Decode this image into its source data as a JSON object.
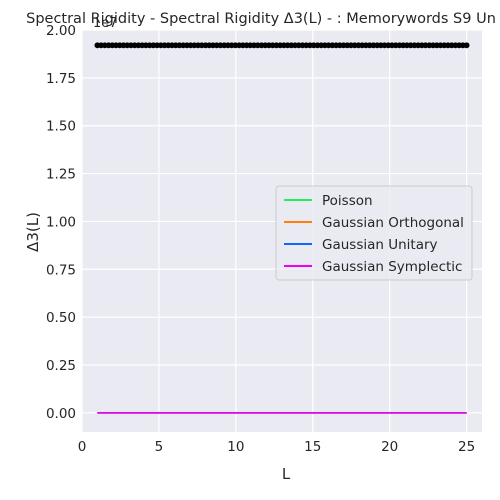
{
  "chart_data": {
    "type": "line",
    "title": "Spectral Rigidity - Spectral Rigidity Δ3(L) - : Memorywords S9 Un",
    "xlabel": "L",
    "ylabel": "Δ3(L)",
    "y_offset_label": "1e7",
    "xlim": [
      0,
      26
    ],
    "ylim": [
      -0.1,
      2.0
    ],
    "x_ticks": [
      0,
      5,
      10,
      15,
      20,
      25
    ],
    "y_ticks": [
      0.0,
      0.25,
      0.5,
      0.75,
      1.0,
      1.25,
      1.5,
      1.75,
      2.0
    ],
    "x_tick_labels": [
      "0",
      "5",
      "10",
      "15",
      "20",
      "25"
    ],
    "y_tick_labels": [
      "0.00",
      "0.25",
      "0.50",
      "0.75",
      "1.00",
      "1.25",
      "1.50",
      "1.75",
      "2.00"
    ],
    "grid": true,
    "legend_position": "center-right",
    "scatter": {
      "x_start": 1,
      "x_end": 25,
      "count": 100,
      "y": 1.92,
      "color": "#000000"
    },
    "series": [
      {
        "name": "Poisson",
        "color": "#22ee55",
        "x": [
          1,
          25
        ],
        "values": [
          0.0,
          0.0
        ]
      },
      {
        "name": "Gaussian Orthogonal",
        "color": "#ff7f0e",
        "x": [
          1,
          25
        ],
        "values": [
          0.0,
          0.0
        ]
      },
      {
        "name": "Gaussian Unitary",
        "color": "#1166ff",
        "x": [
          1,
          25
        ],
        "values": [
          0.0,
          0.0
        ]
      },
      {
        "name": "Gaussian Symplectic",
        "color": "#ee00ee",
        "x": [
          1,
          25
        ],
        "values": [
          0.0,
          0.0
        ]
      }
    ]
  }
}
